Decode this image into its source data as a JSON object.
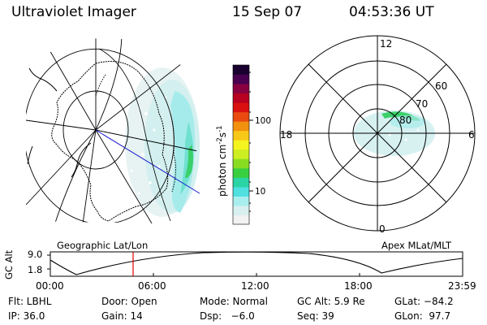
{
  "header": {
    "instrument": "Ultraviolet Imager",
    "date": "15 Sep 07",
    "time": "04:53:36 UT"
  },
  "colorbar": {
    "unit_label": "photon cm",
    "exp1": "-2",
    "mid": "s",
    "exp2": "-1",
    "tick_high": "100",
    "tick_low": "10",
    "colors": [
      "#f2f2f2",
      "#d9f0f0",
      "#a8eeee",
      "#50e0e0",
      "#2ad4a4",
      "#38d040",
      "#88dd22",
      "#ccee22",
      "#f4f420",
      "#f8c818",
      "#f29010",
      "#e84a10",
      "#d81010",
      "#b80020",
      "#880040",
      "#4a0050",
      "#1a0030"
    ]
  },
  "left_panel": {
    "title": "Geographic Lat/Lon",
    "colors": {
      "coast": "#000000",
      "sun_line": "#1a1acc",
      "aurora_light": "#c8eeee",
      "aurora_green": "#3cc84a"
    }
  },
  "right_panel": {
    "title": "Apex MLat/MLT",
    "mlt_labels": {
      "top": "12",
      "left": "18",
      "right": "6",
      "bottom": "0"
    },
    "lat_labels": [
      "60",
      "70",
      "80"
    ]
  },
  "altitude_plot": {
    "y_label": "GC Alt",
    "y_ticks": [
      "9.0",
      "1.8"
    ],
    "x_ticks": [
      "00:00",
      "06:00",
      "12:00",
      "18:00",
      "23:59"
    ],
    "marker_color": "#dd0000"
  },
  "info": {
    "filter": "Flt: LBHL",
    "door": "Door: Open",
    "mode": "Mode: Normal",
    "gc_alt": "GC Alt: 5.9 Re",
    "glat": "GLat: −84.2",
    "ip": "IP: 36.0",
    "gain": "Gain: 14",
    "dsp": "Dsp:   −6.0",
    "seq": "Seq: 39",
    "glon": "GLon:  97.7"
  }
}
